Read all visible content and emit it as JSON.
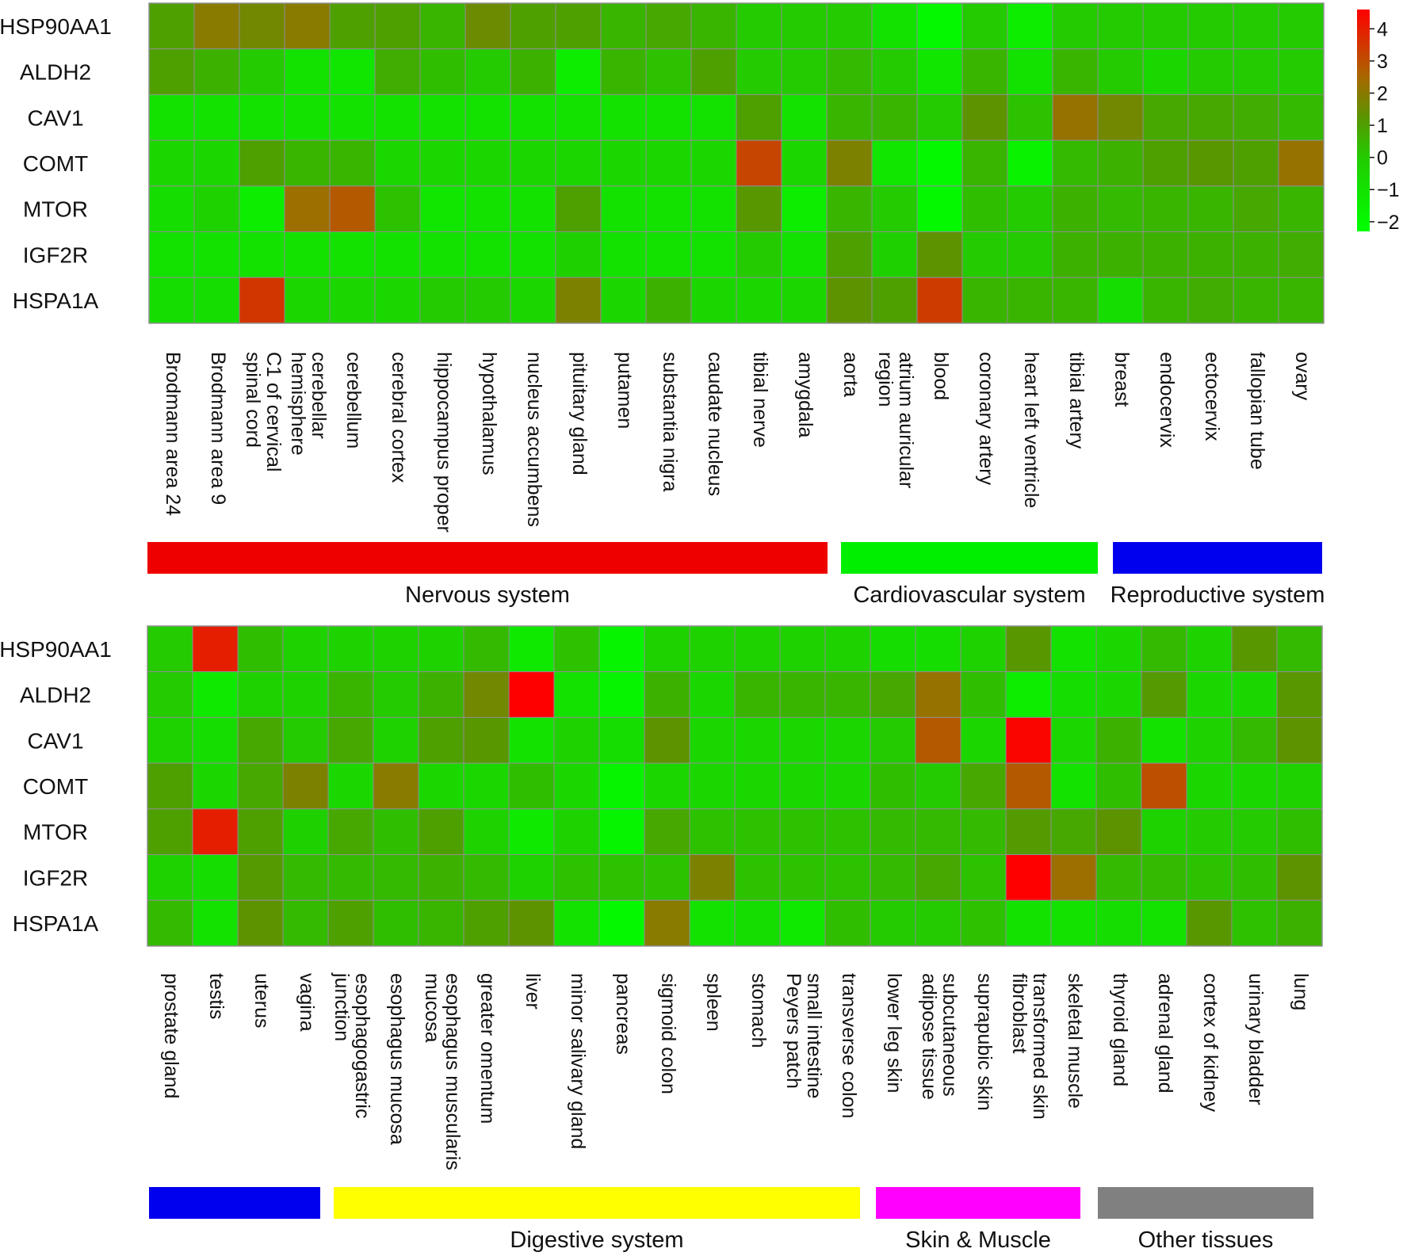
{
  "chart_data": [
    {
      "type": "heatmap",
      "title": "",
      "genes": [
        "HSP90AA1",
        "ALDH2",
        "CAV1",
        "COMT",
        "MTOR",
        "IGF2R",
        "HSPA1A"
      ],
      "tissues": [
        [
          "Brodmann area 24"
        ],
        [
          "Brodmann area 9"
        ],
        [
          "C1 of cervical",
          "spinal cord"
        ],
        [
          "cerebellar",
          "hemisphere"
        ],
        [
          "cerebellum"
        ],
        [
          "cerebral cortex"
        ],
        [
          "hippocampus proper"
        ],
        [
          "hypothalamus"
        ],
        [
          "nucleus accumbens"
        ],
        [
          "pituitary gland"
        ],
        [
          "putamen"
        ],
        [
          "substantia nigra"
        ],
        [
          "caudate nucleus"
        ],
        [
          "tibial nerve"
        ],
        [
          "amygdala"
        ],
        [
          "aorta"
        ],
        [
          "atrium auricular",
          "region"
        ],
        [
          "blood"
        ],
        [
          "coronary artery"
        ],
        [
          "heart left ventricle"
        ],
        [
          "tibial artery"
        ],
        [
          "breast"
        ],
        [
          "endocervix"
        ],
        [
          "ectocervix"
        ],
        [
          "fallopian tube"
        ],
        [
          "ovary"
        ]
      ],
      "values": [
        [
          1,
          2,
          1.6,
          2,
          1,
          1,
          0.5,
          1.5,
          1,
          1,
          0.5,
          0.8,
          0.5,
          0,
          0,
          0,
          -1,
          -2,
          0,
          -1.5,
          0,
          0,
          0,
          0,
          0,
          0
        ],
        [
          1,
          0.6,
          0,
          -1,
          -1.2,
          0.7,
          0.3,
          0,
          0.6,
          -1.5,
          0.5,
          0.2,
          1,
          0,
          0,
          0.4,
          0,
          -1.2,
          0.5,
          -1,
          0.5,
          0,
          -0.5,
          0,
          0,
          0
        ],
        [
          -1,
          -1,
          -1,
          -1,
          -1,
          -1,
          -1,
          -1,
          -1,
          -1,
          -1,
          -1,
          -1,
          1,
          -1,
          0.5,
          0.5,
          0,
          1.3,
          0.2,
          2.2,
          1.6,
          0.8,
          0.8,
          0.7,
          0.4
        ],
        [
          -0.5,
          -0.5,
          1,
          0.5,
          0.5,
          -0.5,
          -0.5,
          -0.5,
          -0.5,
          -0.5,
          -0.5,
          -0.5,
          -0.5,
          3.2,
          -0.5,
          1.8,
          -1.2,
          -2,
          0.5,
          -1.7,
          0.4,
          0.6,
          1,
          1.2,
          1,
          2.2
        ],
        [
          -0.8,
          -0.3,
          -1.5,
          2.3,
          2.8,
          0.2,
          -1.2,
          -1,
          -1,
          1,
          -1,
          -1,
          -1,
          1.2,
          -1.5,
          0.5,
          0,
          -2,
          0.3,
          0,
          0.6,
          0.4,
          0.5,
          0.5,
          0.8,
          0.5
        ],
        [
          -1,
          -1,
          -1,
          -1,
          -1,
          -1,
          -1,
          -1,
          -1,
          -0.2,
          -1,
          -1,
          -1,
          0,
          -1,
          1,
          -0.2,
          1.3,
          0,
          0,
          0.6,
          0.6,
          0.6,
          0.6,
          0.6,
          0.7
        ],
        [
          -0.8,
          -0.8,
          3.5,
          -0.5,
          -0.5,
          -0.5,
          0,
          0,
          -0.5,
          1.8,
          -0.5,
          0.6,
          -0.5,
          -0.5,
          -0.5,
          1.3,
          1,
          3.4,
          0.5,
          0.5,
          0.5,
          -0.8,
          0.5,
          0.7,
          0.5,
          0.5
        ]
      ],
      "groups": [
        {
          "name": "Nervous system",
          "color": "#ee0000"
        },
        {
          "name": "Cardiovascular system",
          "color": "#00ee00"
        },
        {
          "name": "Reproductive system",
          "color": "#0000ee"
        }
      ]
    },
    {
      "type": "heatmap",
      "title": "",
      "genes": [
        "HSP90AA1",
        "ALDH2",
        "CAV1",
        "COMT",
        "MTOR",
        "IGF2R",
        "HSPA1A"
      ],
      "tissues": [
        [
          "prostate gland"
        ],
        [
          "testis"
        ],
        [
          "uterus"
        ],
        [
          "vagina"
        ],
        [
          "esophagogastric",
          "junction"
        ],
        [
          "esophagus mucosa"
        ],
        [
          "esophagus muscularis",
          "mucosa"
        ],
        [
          "greater omentum"
        ],
        [
          "liver"
        ],
        [
          "minor salivary gland"
        ],
        [
          "pancreas"
        ],
        [
          "sigmoid colon"
        ],
        [
          "spleen"
        ],
        [
          "stomach"
        ],
        [
          "small intestine",
          "Peyers patch"
        ],
        [
          "transverse colon"
        ],
        [
          "lower leg skin"
        ],
        [
          "subcutaneous",
          "adipose tissue"
        ],
        [
          "suprapubic skin"
        ],
        [
          "transformed skin",
          "fibroblast"
        ],
        [
          "skeletal muscle"
        ],
        [
          "thyroid gland"
        ],
        [
          "adrenal gland"
        ],
        [
          "cortex of kidney"
        ],
        [
          "urinary bladder"
        ],
        [
          "lung"
        ]
      ],
      "values": [
        [
          0,
          4,
          0.3,
          -0.3,
          -0.3,
          -0.3,
          -0.3,
          0.4,
          -1.3,
          0.2,
          -1.8,
          -0.3,
          -0.3,
          -0.3,
          -0.3,
          -0.3,
          -0.8,
          -0.8,
          -0.3,
          1.2,
          -1,
          -0.5,
          0.4,
          -0.3,
          1.2,
          0.4
        ],
        [
          0,
          -1.3,
          -0.3,
          -0.3,
          0.5,
          0,
          0.6,
          1.6,
          4.8,
          -1,
          -1.8,
          0.6,
          -0.5,
          0.5,
          0.5,
          0.5,
          0.8,
          2.2,
          0.3,
          -1.5,
          -0.8,
          -0.5,
          1.1,
          -0.5,
          -0.5,
          1.2
        ],
        [
          -0.3,
          -0.8,
          0.8,
          0,
          0.8,
          -0.3,
          1,
          1.2,
          -1,
          -0.3,
          -0.8,
          1.3,
          -0.5,
          -0.5,
          -0.5,
          -0.5,
          0,
          2.8,
          -0.5,
          4.5,
          -0.5,
          0.6,
          -1,
          -0.3,
          0.4,
          1.3
        ],
        [
          1,
          -0.5,
          0.8,
          1.8,
          -0.5,
          2,
          -0.5,
          -0.5,
          0.3,
          -0.5,
          -1.8,
          -0.5,
          -0.5,
          -0.5,
          -0.5,
          -0.5,
          0.3,
          0,
          0.8,
          2.8,
          -1,
          0.3,
          3,
          -0.5,
          -0.5,
          -0.3
        ],
        [
          1,
          4,
          1,
          -0.2,
          0.8,
          0.3,
          1,
          -0.3,
          -1.3,
          -0.3,
          -1.8,
          0.8,
          0.2,
          0.2,
          0.2,
          0.2,
          0.4,
          0.4,
          0.4,
          1.1,
          0.8,
          1.3,
          -0.3,
          0,
          0,
          0.3
        ],
        [
          -0.3,
          -0.8,
          1.1,
          0.4,
          0.4,
          0.4,
          0.6,
          0.4,
          -0.3,
          0.2,
          0.2,
          0.2,
          1.8,
          0.2,
          0.2,
          0.2,
          0.4,
          0.8,
          0.2,
          5,
          2.3,
          0.4,
          0.4,
          0.2,
          0.3,
          1.3
        ],
        [
          0.4,
          -1,
          1.3,
          0.4,
          1,
          0.3,
          0.5,
          1,
          1.3,
          -1,
          -2,
          2,
          -1,
          -0.8,
          -1.3,
          0.3,
          0,
          0,
          0.2,
          -1,
          -1,
          -0.8,
          -1,
          1.2,
          0.2,
          0.6
        ]
      ],
      "groups": [
        {
          "name": "",
          "color": "#0000ee"
        },
        {
          "name": "Digestive system",
          "color": "#ffff00"
        },
        {
          "name": "Skin & Muscle",
          "color": "#ff00ff"
        },
        {
          "name": "Other tissues",
          "color": "#808080"
        }
      ]
    }
  ],
  "legend": {
    "ticks": [
      "4",
      "3",
      "2",
      "1",
      "0",
      "−1",
      "−2"
    ],
    "tick_values": [
      4,
      3,
      2,
      1,
      0,
      -1,
      -2
    ],
    "range": [
      -2.3,
      4.6
    ]
  }
}
